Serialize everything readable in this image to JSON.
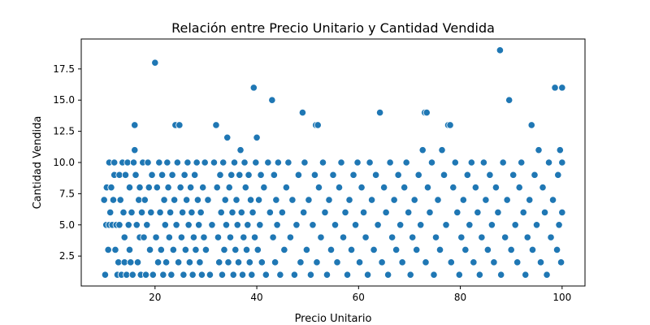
{
  "chart_data": {
    "type": "scatter",
    "title": "Relación entre Precio Unitario y Cantidad Vendida",
    "xlabel": "Precio Unitario",
    "ylabel": "Cantidad Vendida",
    "xlim": [
      5.5,
      104.5
    ],
    "ylim": [
      0.1,
      19.9
    ],
    "xticks": [
      20,
      40,
      60,
      80,
      100
    ],
    "yticks": [
      2.5,
      5.0,
      7.5,
      10.0,
      12.5,
      15.0,
      17.5
    ],
    "xtick_labels": [
      "20",
      "40",
      "60",
      "80",
      "100"
    ],
    "ytick_labels": [
      "2.5",
      "5.0",
      "7.5",
      "10.0",
      "12.5",
      "15.0",
      "17.5"
    ],
    "grid": false,
    "legend": "none",
    "marker_color": "#1f77b4",
    "points": [
      [
        10,
        7
      ],
      [
        10.2,
        1
      ],
      [
        10.4,
        5
      ],
      [
        10.5,
        8
      ],
      [
        10.8,
        3
      ],
      [
        11,
        5
      ],
      [
        11,
        10
      ],
      [
        11.2,
        6
      ],
      [
        11.4,
        8
      ],
      [
        11.6,
        5
      ],
      [
        11.8,
        7
      ],
      [
        12,
        9
      ],
      [
        12,
        10
      ],
      [
        12.2,
        3
      ],
      [
        12.4,
        5
      ],
      [
        12.6,
        1
      ],
      [
        12.8,
        2
      ],
      [
        13,
        9
      ],
      [
        13,
        5
      ],
      [
        13.2,
        7
      ],
      [
        13.4,
        1
      ],
      [
        13.6,
        10
      ],
      [
        13.8,
        6
      ],
      [
        14,
        4
      ],
      [
        14,
        2
      ],
      [
        14.2,
        9
      ],
      [
        14.4,
        1
      ],
      [
        14.6,
        10
      ],
      [
        14.8,
        5
      ],
      [
        15,
        3
      ],
      [
        15,
        8
      ],
      [
        15.2,
        2
      ],
      [
        15.4,
        6
      ],
      [
        15.6,
        1
      ],
      [
        15.8,
        10
      ],
      [
        16,
        11
      ],
      [
        16,
        13
      ],
      [
        16.2,
        9
      ],
      [
        16.4,
        5
      ],
      [
        16.6,
        2
      ],
      [
        16.8,
        7
      ],
      [
        17,
        4
      ],
      [
        17,
        8
      ],
      [
        17.2,
        1
      ],
      [
        17.4,
        6
      ],
      [
        17.6,
        10
      ],
      [
        17.8,
        4
      ],
      [
        18,
        7
      ],
      [
        18.2,
        1
      ],
      [
        18.4,
        5
      ],
      [
        18.6,
        10
      ],
      [
        18.8,
        8
      ],
      [
        19,
        3
      ],
      [
        19.2,
        6
      ],
      [
        19.4,
        9
      ],
      [
        19.6,
        1
      ],
      [
        20,
        18
      ],
      [
        20.2,
        4
      ],
      [
        20.4,
        8
      ],
      [
        20.6,
        2
      ],
      [
        20.8,
        10
      ],
      [
        21,
        6
      ],
      [
        21.2,
        3
      ],
      [
        21.4,
        9
      ],
      [
        21.6,
        1
      ],
      [
        21.8,
        7
      ],
      [
        22,
        5
      ],
      [
        22.2,
        2
      ],
      [
        22.4,
        10
      ],
      [
        22.6,
        8
      ],
      [
        22.8,
        4
      ],
      [
        23,
        6
      ],
      [
        23.2,
        1
      ],
      [
        23.4,
        9
      ],
      [
        23.6,
        3
      ],
      [
        23.8,
        7
      ],
      [
        24,
        13
      ],
      [
        24.2,
        5
      ],
      [
        24.4,
        10
      ],
      [
        24.6,
        2
      ],
      [
        24.8,
        13
      ],
      [
        25,
        8
      ],
      [
        25.2,
        4
      ],
      [
        25.4,
        6
      ],
      [
        25.6,
        1
      ],
      [
        25.8,
        9
      ],
      [
        26,
        3
      ],
      [
        26.2,
        7
      ],
      [
        26.4,
        10
      ],
      [
        26.6,
        5
      ],
      [
        26.8,
        2
      ],
      [
        27,
        8
      ],
      [
        27.2,
        6
      ],
      [
        27.4,
        1
      ],
      [
        27.6,
        4
      ],
      [
        27.8,
        9
      ],
      [
        28,
        3
      ],
      [
        28.2,
        10
      ],
      [
        28.4,
        7
      ],
      [
        28.6,
        5
      ],
      [
        28.8,
        2
      ],
      [
        29,
        6
      ],
      [
        29.2,
        1
      ],
      [
        29.4,
        8
      ],
      [
        29.6,
        4
      ],
      [
        29.8,
        10
      ],
      [
        30,
        3
      ],
      [
        30.4,
        7
      ],
      [
        30.8,
        1
      ],
      [
        31.2,
        5
      ],
      [
        31.6,
        10
      ],
      [
        32,
        13
      ],
      [
        32.2,
        8
      ],
      [
        32.4,
        4
      ],
      [
        32.6,
        2
      ],
      [
        32.8,
        9
      ],
      [
        33,
        6
      ],
      [
        33.2,
        1
      ],
      [
        33.4,
        10
      ],
      [
        33.6,
        3
      ],
      [
        33.8,
        7
      ],
      [
        34,
        5
      ],
      [
        34.2,
        12
      ],
      [
        34.4,
        2
      ],
      [
        34.6,
        8
      ],
      [
        34.8,
        4
      ],
      [
        35,
        9
      ],
      [
        35.2,
        6
      ],
      [
        35.4,
        1
      ],
      [
        35.6,
        10
      ],
      [
        35.8,
        3
      ],
      [
        36,
        7
      ],
      [
        36.2,
        5
      ],
      [
        36.4,
        2
      ],
      [
        36.6,
        9
      ],
      [
        36.8,
        11
      ],
      [
        37,
        6
      ],
      [
        37.2,
        1
      ],
      [
        37.4,
        4
      ],
      [
        37.6,
        10
      ],
      [
        37.8,
        8
      ],
      [
        38,
        3
      ],
      [
        38.2,
        5
      ],
      [
        38.4,
        9
      ],
      [
        38.6,
        2
      ],
      [
        38.8,
        7
      ],
      [
        39,
        1
      ],
      [
        39.2,
        6
      ],
      [
        39.4,
        16
      ],
      [
        39.6,
        4
      ],
      [
        39.8,
        10
      ],
      [
        40,
        12
      ],
      [
        40.2,
        3
      ],
      [
        40.4,
        7
      ],
      [
        40.6,
        5
      ],
      [
        40.8,
        9
      ],
      [
        41,
        2
      ],
      [
        41.4,
        8
      ],
      [
        41.8,
        1
      ],
      [
        42.2,
        10
      ],
      [
        42.6,
        6
      ],
      [
        43,
        15
      ],
      [
        43.2,
        4
      ],
      [
        43.4,
        9
      ],
      [
        43.6,
        2
      ],
      [
        43.8,
        7
      ],
      [
        44,
        5
      ],
      [
        44.2,
        10
      ],
      [
        44.6,
        1
      ],
      [
        45,
        6
      ],
      [
        45.4,
        3
      ],
      [
        45.8,
        8
      ],
      [
        46.2,
        10
      ],
      [
        46.6,
        4
      ],
      [
        47,
        7
      ],
      [
        47.4,
        1
      ],
      [
        47.8,
        5
      ],
      [
        48.2,
        9
      ],
      [
        48.6,
        2
      ],
      [
        49,
        14
      ],
      [
        49.2,
        6
      ],
      [
        49.4,
        10
      ],
      [
        49.8,
        3
      ],
      [
        50.2,
        7
      ],
      [
        50.6,
        1
      ],
      [
        51,
        5
      ],
      [
        51.4,
        9
      ],
      [
        51.6,
        13
      ],
      [
        51.8,
        2
      ],
      [
        52,
        13
      ],
      [
        52.2,
        8
      ],
      [
        52.6,
        4
      ],
      [
        53,
        10
      ],
      [
        53.4,
        6
      ],
      [
        53.8,
        1
      ],
      [
        54.2,
        7
      ],
      [
        54.6,
        3
      ],
      [
        55,
        9
      ],
      [
        55.4,
        5
      ],
      [
        55.8,
        2
      ],
      [
        56.2,
        8
      ],
      [
        56.6,
        10
      ],
      [
        57,
        4
      ],
      [
        57.4,
        6
      ],
      [
        57.8,
        1
      ],
      [
        58.2,
        7
      ],
      [
        58.6,
        3
      ],
      [
        59,
        9
      ],
      [
        59.4,
        5
      ],
      [
        59.8,
        10
      ],
      [
        60.2,
        2
      ],
      [
        60.6,
        8
      ],
      [
        61,
        6
      ],
      [
        61.4,
        4
      ],
      [
        61.8,
        1
      ],
      [
        62.2,
        10
      ],
      [
        62.6,
        7
      ],
      [
        63,
        3
      ],
      [
        63.4,
        9
      ],
      [
        63.8,
        5
      ],
      [
        64.2,
        14
      ],
      [
        64.6,
        2
      ],
      [
        65,
        8
      ],
      [
        65.4,
        6
      ],
      [
        65.8,
        1
      ],
      [
        66.2,
        10
      ],
      [
        66.6,
        4
      ],
      [
        67,
        7
      ],
      [
        67.4,
        3
      ],
      [
        67.8,
        9
      ],
      [
        68.2,
        5
      ],
      [
        68.6,
        2
      ],
      [
        69,
        8
      ],
      [
        69.4,
        10
      ],
      [
        69.8,
        6
      ],
      [
        70.2,
        1
      ],
      [
        70.6,
        4
      ],
      [
        71,
        7
      ],
      [
        71.4,
        3
      ],
      [
        71.8,
        9
      ],
      [
        72.2,
        5
      ],
      [
        72.6,
        11
      ],
      [
        73,
        14
      ],
      [
        73.2,
        2
      ],
      [
        73.4,
        14
      ],
      [
        73.6,
        8
      ],
      [
        74,
        6
      ],
      [
        74.4,
        10
      ],
      [
        74.8,
        1
      ],
      [
        75.2,
        4
      ],
      [
        75.6,
        7
      ],
      [
        76,
        3
      ],
      [
        76.4,
        11
      ],
      [
        76.8,
        9
      ],
      [
        77.2,
        5
      ],
      [
        77.6,
        13
      ],
      [
        78,
        13
      ],
      [
        78.2,
        2
      ],
      [
        78.6,
        8
      ],
      [
        79,
        10
      ],
      [
        79.4,
        6
      ],
      [
        79.8,
        1
      ],
      [
        80.2,
        4
      ],
      [
        80.6,
        7
      ],
      [
        81,
        3
      ],
      [
        81.4,
        9
      ],
      [
        81.8,
        5
      ],
      [
        82.2,
        10
      ],
      [
        82.6,
        2
      ],
      [
        83,
        8
      ],
      [
        83.4,
        6
      ],
      [
        83.8,
        1
      ],
      [
        84.2,
        4
      ],
      [
        84.6,
        10
      ],
      [
        85,
        7
      ],
      [
        85.4,
        3
      ],
      [
        85.8,
        9
      ],
      [
        86.2,
        5
      ],
      [
        86.6,
        2
      ],
      [
        87,
        8
      ],
      [
        87.4,
        6
      ],
      [
        87.8,
        19
      ],
      [
        88,
        1
      ],
      [
        88.4,
        10
      ],
      [
        88.8,
        4
      ],
      [
        89.2,
        7
      ],
      [
        89.6,
        15
      ],
      [
        90,
        3
      ],
      [
        90.4,
        9
      ],
      [
        90.8,
        5
      ],
      [
        91.2,
        2
      ],
      [
        91.6,
        8
      ],
      [
        92,
        10
      ],
      [
        92.4,
        6
      ],
      [
        92.8,
        1
      ],
      [
        93.2,
        4
      ],
      [
        93.6,
        7
      ],
      [
        94,
        13
      ],
      [
        94.2,
        3
      ],
      [
        94.6,
        9
      ],
      [
        95,
        5
      ],
      [
        95.4,
        11
      ],
      [
        95.8,
        2
      ],
      [
        96.2,
        8
      ],
      [
        96.6,
        6
      ],
      [
        97,
        1
      ],
      [
        97.4,
        10
      ],
      [
        97.8,
        4
      ],
      [
        98.2,
        7
      ],
      [
        98.6,
        16
      ],
      [
        99,
        3
      ],
      [
        99.2,
        9
      ],
      [
        99.4,
        5
      ],
      [
        99.6,
        11
      ],
      [
        99.8,
        2
      ],
      [
        100,
        16
      ],
      [
        100,
        6
      ],
      [
        100,
        10
      ]
    ]
  }
}
